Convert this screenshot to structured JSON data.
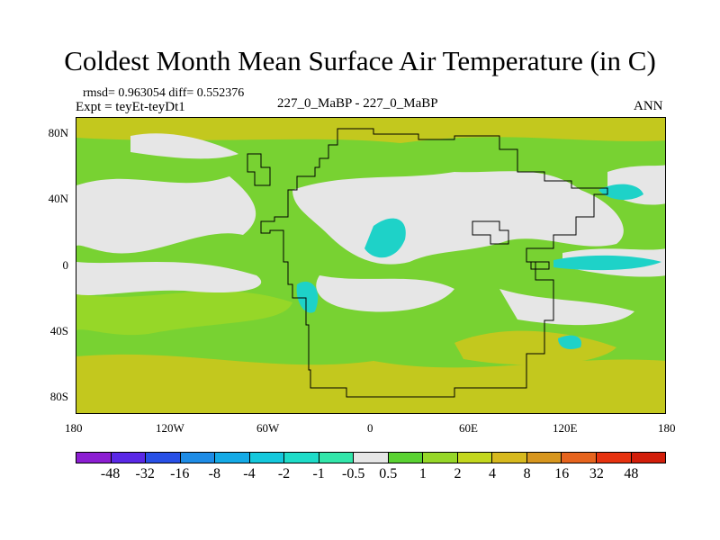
{
  "header": {
    "title": "Coldest Month Mean Surface Air Temperature (in C)",
    "stats": "rmsd= 0.963054 diff= 0.552376",
    "expt": "Expt = teyEt-teyDt1",
    "comparison": "227_0_MaBP - 227_0_MaBP",
    "season": "ANN"
  },
  "axes": {
    "x_ticks": [
      "180",
      "120W",
      "60W",
      "0",
      "60E",
      "120E",
      "180"
    ],
    "y_ticks": [
      "80N",
      "40N",
      "0",
      "40S",
      "80S"
    ]
  },
  "colorbar": {
    "labels": [
      "-48",
      "-32",
      "-16",
      "-8",
      "-4",
      "-2",
      "-1",
      "-0.5",
      "0.5",
      "1",
      "2",
      "4",
      "8",
      "16",
      "32",
      "48"
    ],
    "colors": [
      "#8c1ed2",
      "#5a28e6",
      "#2850e6",
      "#1e8ce6",
      "#14aae6",
      "#14c8dc",
      "#1edcc8",
      "#32e6aa",
      "#e6e6e6",
      "#5ad232",
      "#96d728",
      "#c3d71e",
      "#d7b91e",
      "#d7961e",
      "#e6641e",
      "#e6320f",
      "#d21e0a"
    ]
  },
  "map_colors": {
    "neutral": "#e6e6e6",
    "green": "#78d232",
    "light_green": "#96d728",
    "yellow": "#c3c81e",
    "cyan": "#1ed2c8",
    "coast": "#000000"
  }
}
